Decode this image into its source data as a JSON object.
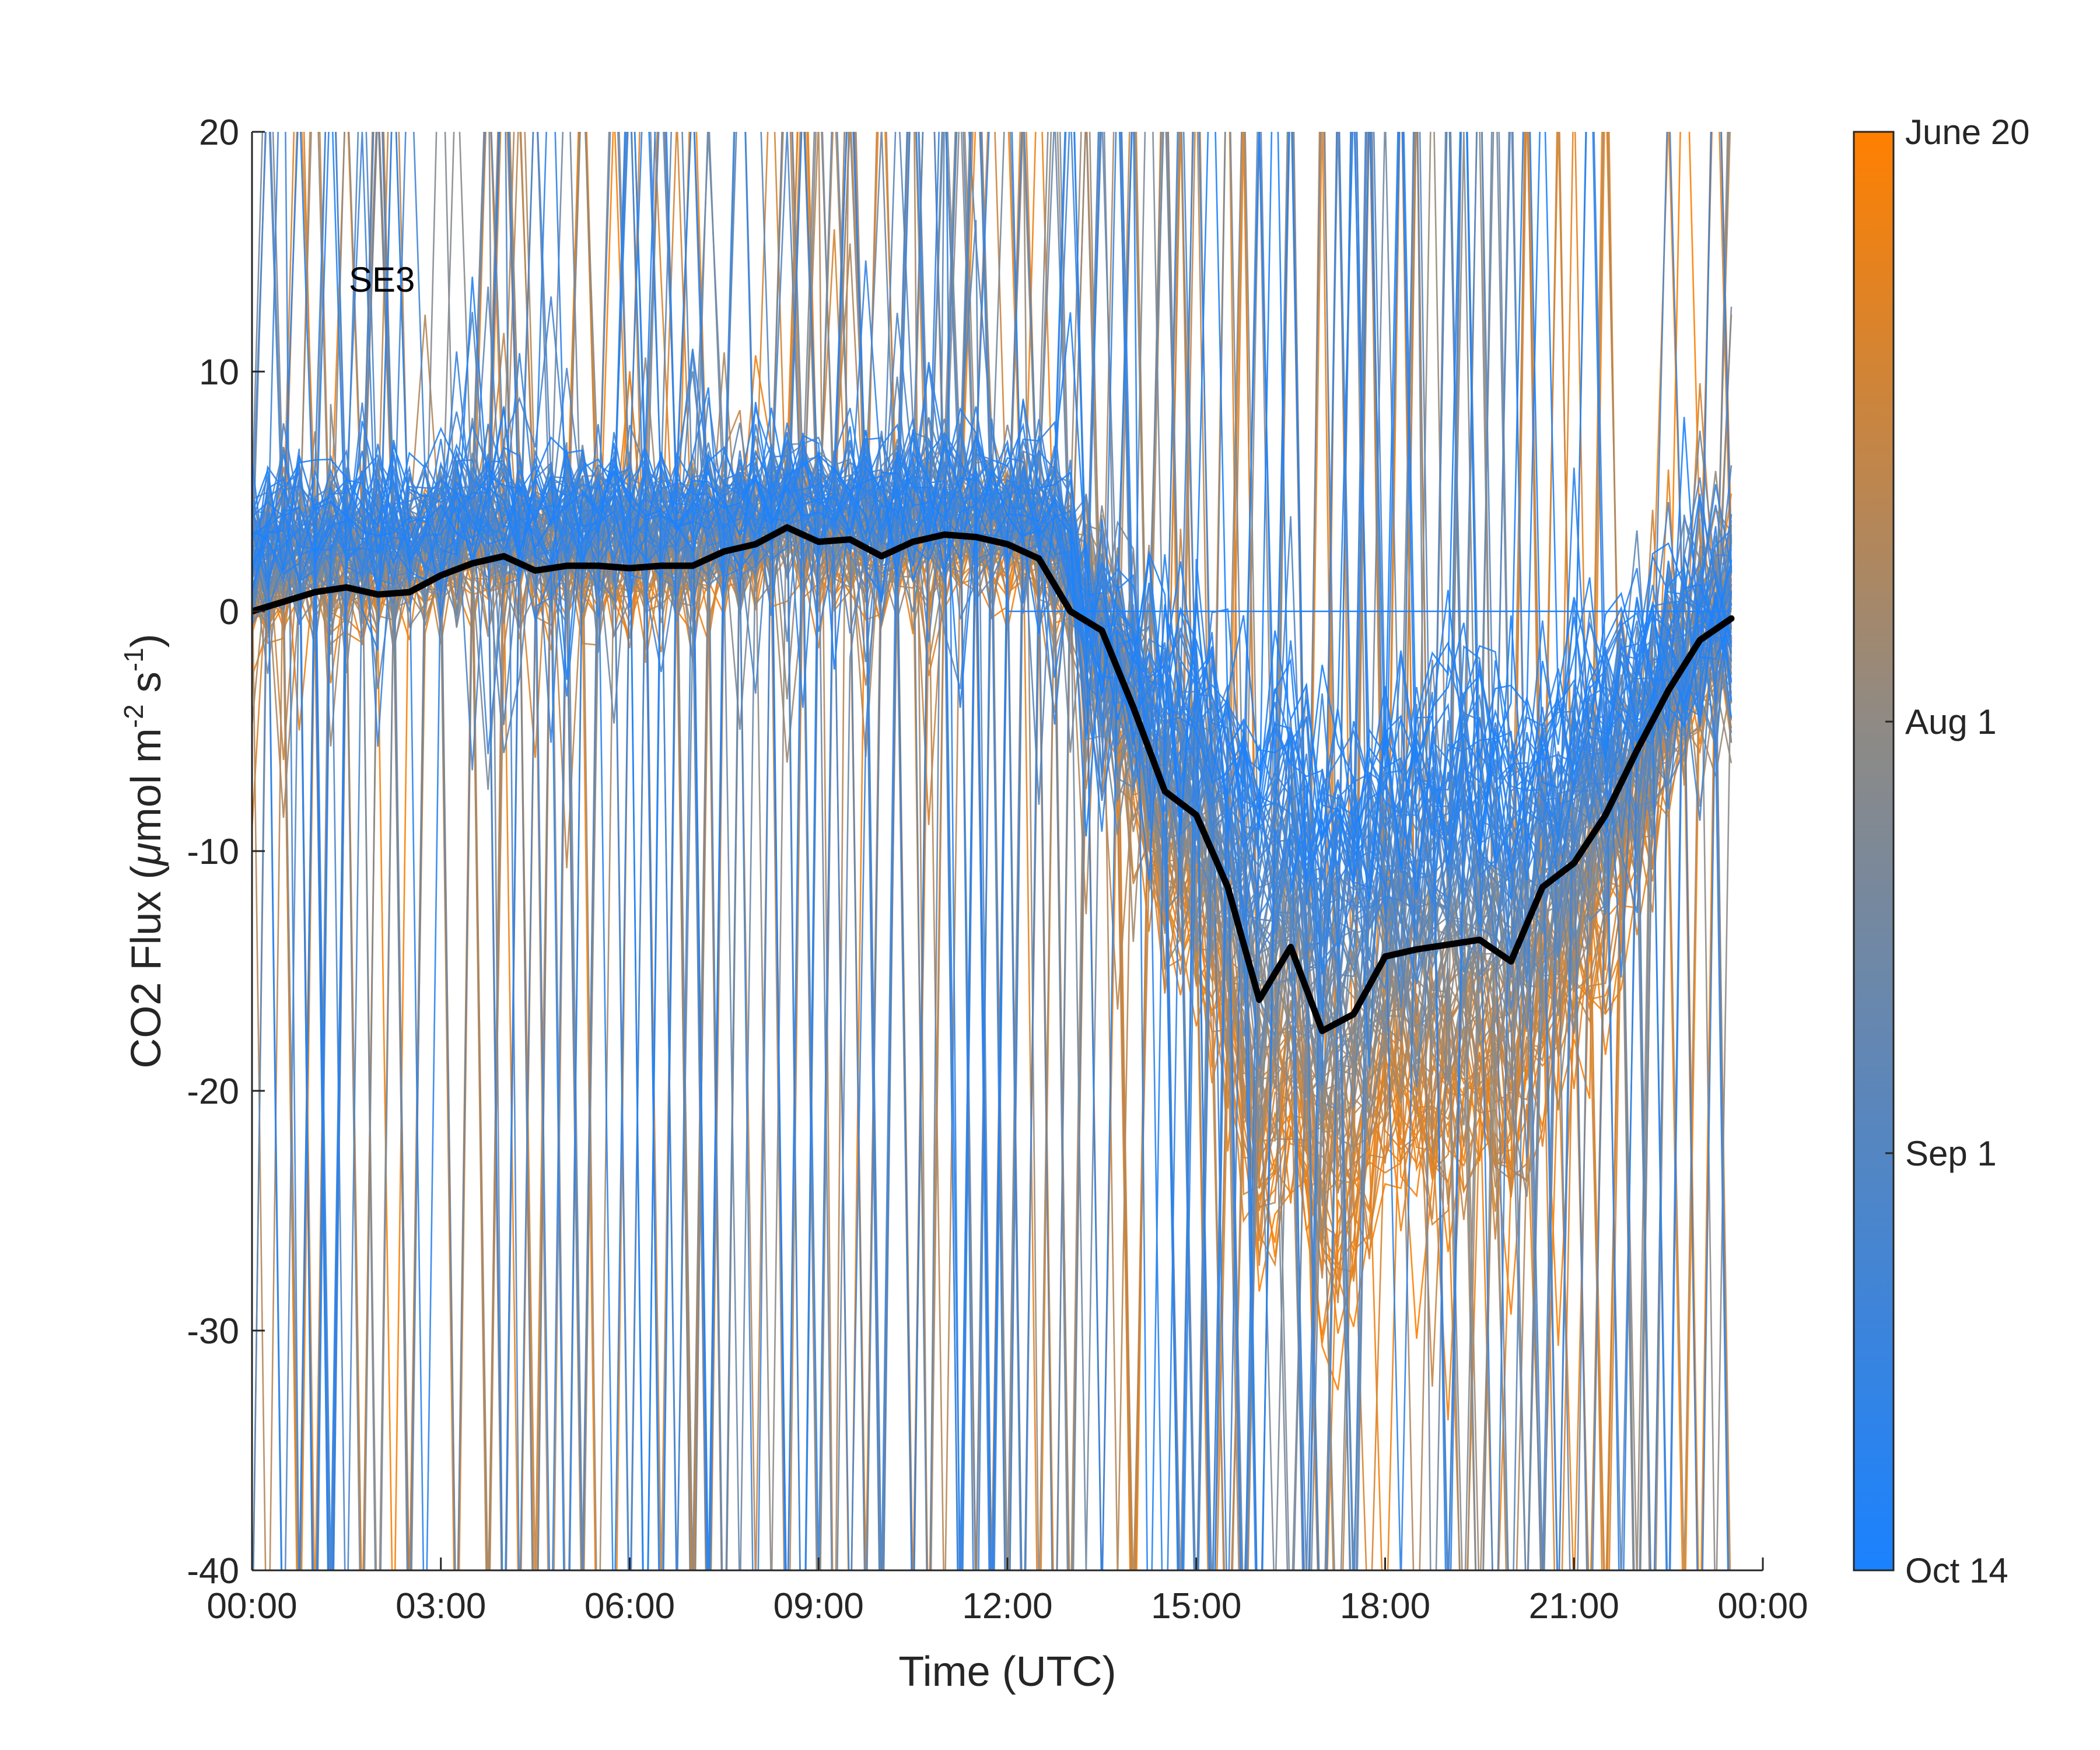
{
  "chart_data": {
    "type": "line",
    "xlabel": "Time (UTC)",
    "ylabel_parts": {
      "lead": "CO2 Flux (",
      "mu": "μ",
      "mid1": "mol m",
      "sup1": "-2",
      "mid2": " s",
      "sup2": "-1",
      "tail": ")"
    },
    "annotation": "SE3",
    "x_ticks": [
      "00:00",
      "03:00",
      "06:00",
      "09:00",
      "12:00",
      "15:00",
      "18:00",
      "21:00",
      "00:00"
    ],
    "xlim_hours": [
      0,
      24
    ],
    "ylim": [
      -40,
      20
    ],
    "y_ticks": [
      20,
      10,
      0,
      -10,
      -20,
      -30,
      -40
    ],
    "y_tick_labels": [
      "20",
      "10",
      "0",
      "-10",
      "-20",
      "-30",
      "-40"
    ],
    "colorbar": {
      "labels": [
        "June 20",
        "Aug 1",
        "Sep 1",
        "Oct 14"
      ],
      "label_fractions_from_top": [
        0.0,
        0.41,
        0.71,
        1.0
      ],
      "color_top": "#ff8000",
      "color_mid": "#8f8a84",
      "color_bottom": "#1a82ff"
    },
    "mean_series": {
      "color": "#000000",
      "x_hours": [
        0,
        0.5,
        1,
        1.5,
        2,
        2.5,
        3,
        3.5,
        4,
        4.5,
        5,
        5.5,
        6,
        6.5,
        7,
        7.5,
        8,
        8.5,
        9,
        9.5,
        10,
        10.5,
        11,
        11.5,
        12,
        12.5,
        13,
        13.5,
        14,
        14.5,
        15,
        15.5,
        16,
        16.5,
        17,
        17.5,
        18,
        18.5,
        19,
        19.5,
        20,
        20.5,
        21,
        21.5,
        22,
        22.5,
        23,
        23.5
      ],
      "y": [
        0.0,
        0.4,
        0.8,
        1.0,
        0.7,
        0.8,
        1.5,
        2.0,
        2.3,
        1.7,
        1.9,
        1.9,
        1.8,
        1.9,
        1.9,
        2.5,
        2.8,
        3.5,
        2.9,
        3.0,
        2.3,
        2.9,
        3.2,
        3.1,
        2.8,
        2.2,
        0.0,
        -0.8,
        -4.0,
        -7.5,
        -8.5,
        -11.5,
        -16.2,
        -14.0,
        -17.5,
        -16.8,
        -14.4,
        -14.1,
        -13.9,
        -13.7,
        -14.6,
        -11.5,
        -10.5,
        -8.5,
        -5.8,
        -3.3,
        -1.2,
        -0.3
      ]
    },
    "ensemble": {
      "description_count": 110,
      "x_step_hours": 0.25
    }
  }
}
